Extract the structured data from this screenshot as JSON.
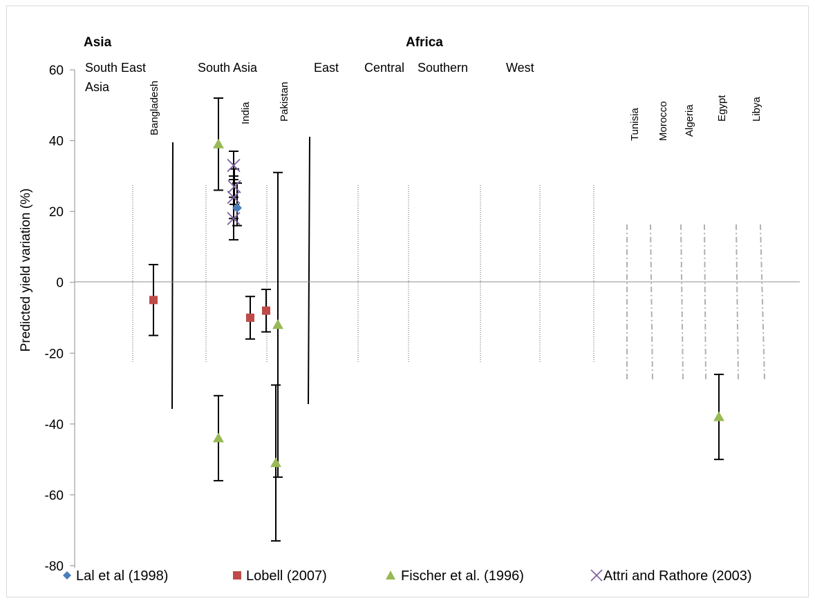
{
  "chart_data": {
    "type": "scatter",
    "title": "",
    "ylabel": "Predicted yield variation (%)",
    "xlabel": "",
    "ylim": [
      -80,
      60
    ],
    "yticks": [
      60,
      40,
      20,
      0,
      -20,
      -40,
      -60,
      -80
    ],
    "grid": false,
    "legend_position": "bottom",
    "continents": [
      "Asia",
      "Africa"
    ],
    "regions": [
      "South East Asia",
      "South Asia",
      "East",
      "Central",
      "Southern",
      "West"
    ],
    "countries": [
      "Bangladesh",
      "India",
      "Pakistan",
      "Tunisia",
      "Morocco",
      "Algeria",
      "Egypt",
      "Libya"
    ],
    "series": [
      {
        "name": "Lal et al (1998)",
        "marker": "diamond",
        "color": "#4a7ebb",
        "points": [
          {
            "country": "India",
            "y": 21,
            "err_low": 16,
            "err_high": 28
          }
        ]
      },
      {
        "name": "Lobell (2007)",
        "marker": "square",
        "color": "#be4b48",
        "points": [
          {
            "country": "Bangladesh",
            "y": -5,
            "err_low": -15,
            "err_high": 5
          },
          {
            "country": "India",
            "y": -10,
            "err_low": -16,
            "err_high": -4
          },
          {
            "country": "India",
            "y": -8,
            "err_low": -14,
            "err_high": -2
          }
        ]
      },
      {
        "name": "Fischer et al. (1996)",
        "marker": "triangle",
        "color": "#98b954",
        "points": [
          {
            "country": "India",
            "y": 39,
            "err_low": 26,
            "err_high": 52
          },
          {
            "country": "India",
            "y": -44,
            "err_low": -56,
            "err_high": -32
          },
          {
            "country": "Pakistan",
            "y": -12,
            "err_low": -55,
            "err_high": 31
          },
          {
            "country": "Pakistan",
            "y": -51,
            "err_low": -73,
            "err_high": -29
          },
          {
            "country": "Egypt",
            "y": -38,
            "err_low": -50,
            "err_high": -26
          }
        ]
      },
      {
        "name": "Attri and Rathore (2003)",
        "marker": "x",
        "color": "#7d60a0",
        "points": [
          {
            "country": "India",
            "y": 33,
            "err_low": 29,
            "err_high": 37
          },
          {
            "country": "India",
            "y": 27,
            "err_low": 22,
            "err_high": 32
          },
          {
            "country": "India",
            "y": 24,
            "err_low": 18,
            "err_high": 30
          },
          {
            "country": "India",
            "y": 18,
            "err_low": 12,
            "err_high": 24
          }
        ]
      }
    ]
  }
}
